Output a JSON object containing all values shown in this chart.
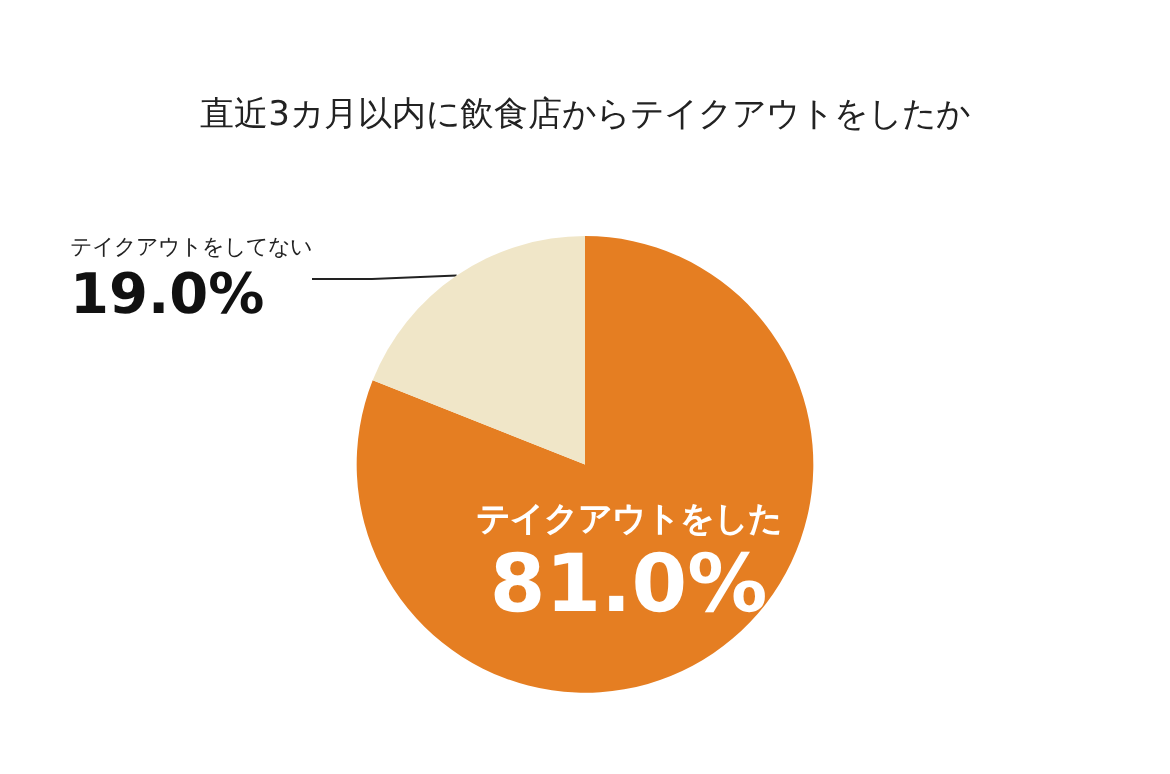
{
  "chart_data": {
    "type": "pie",
    "title": "直近3カ月以内に飲食店からテイクアウトをしたか",
    "categories": [
      "テイクアウトをした",
      "テイクアウトをしてない"
    ],
    "values": [
      81.0,
      19.0
    ],
    "colors": [
      "#e57e22",
      "#f0e6c8"
    ],
    "value_labels": [
      "81.0%",
      "19.0%"
    ],
    "legend": false
  }
}
